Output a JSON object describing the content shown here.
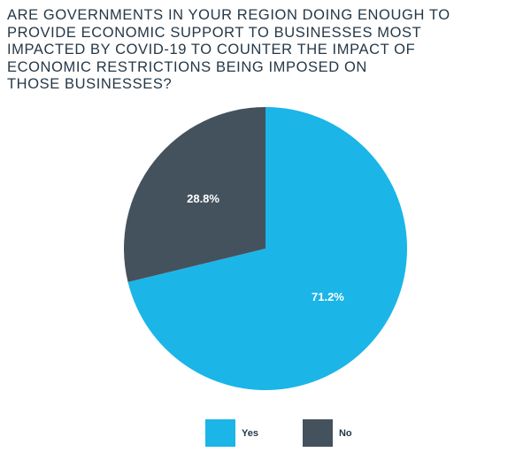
{
  "chart_data": {
    "type": "pie",
    "title_lines": [
      "ARE GOVERNMENTS IN YOUR REGION DOING ENOUGH TO",
      "PROVIDE ECONOMIC SUPPORT TO BUSINESSES MOST",
      "IMPACTED BY COVID-19 TO COUNTER THE IMPACT OF",
      "ECONOMIC RESTRICTIONS BEING IMPOSED ON",
      "THOSE BUSINESSES?"
    ],
    "slices": [
      {
        "label": "Yes",
        "value": 71.2,
        "display": "71.2%",
        "color": "#1bb5e8"
      },
      {
        "label": "No",
        "value": 28.8,
        "display": "28.8%",
        "color": "#44525e"
      }
    ],
    "legend_position": "bottom-center"
  }
}
